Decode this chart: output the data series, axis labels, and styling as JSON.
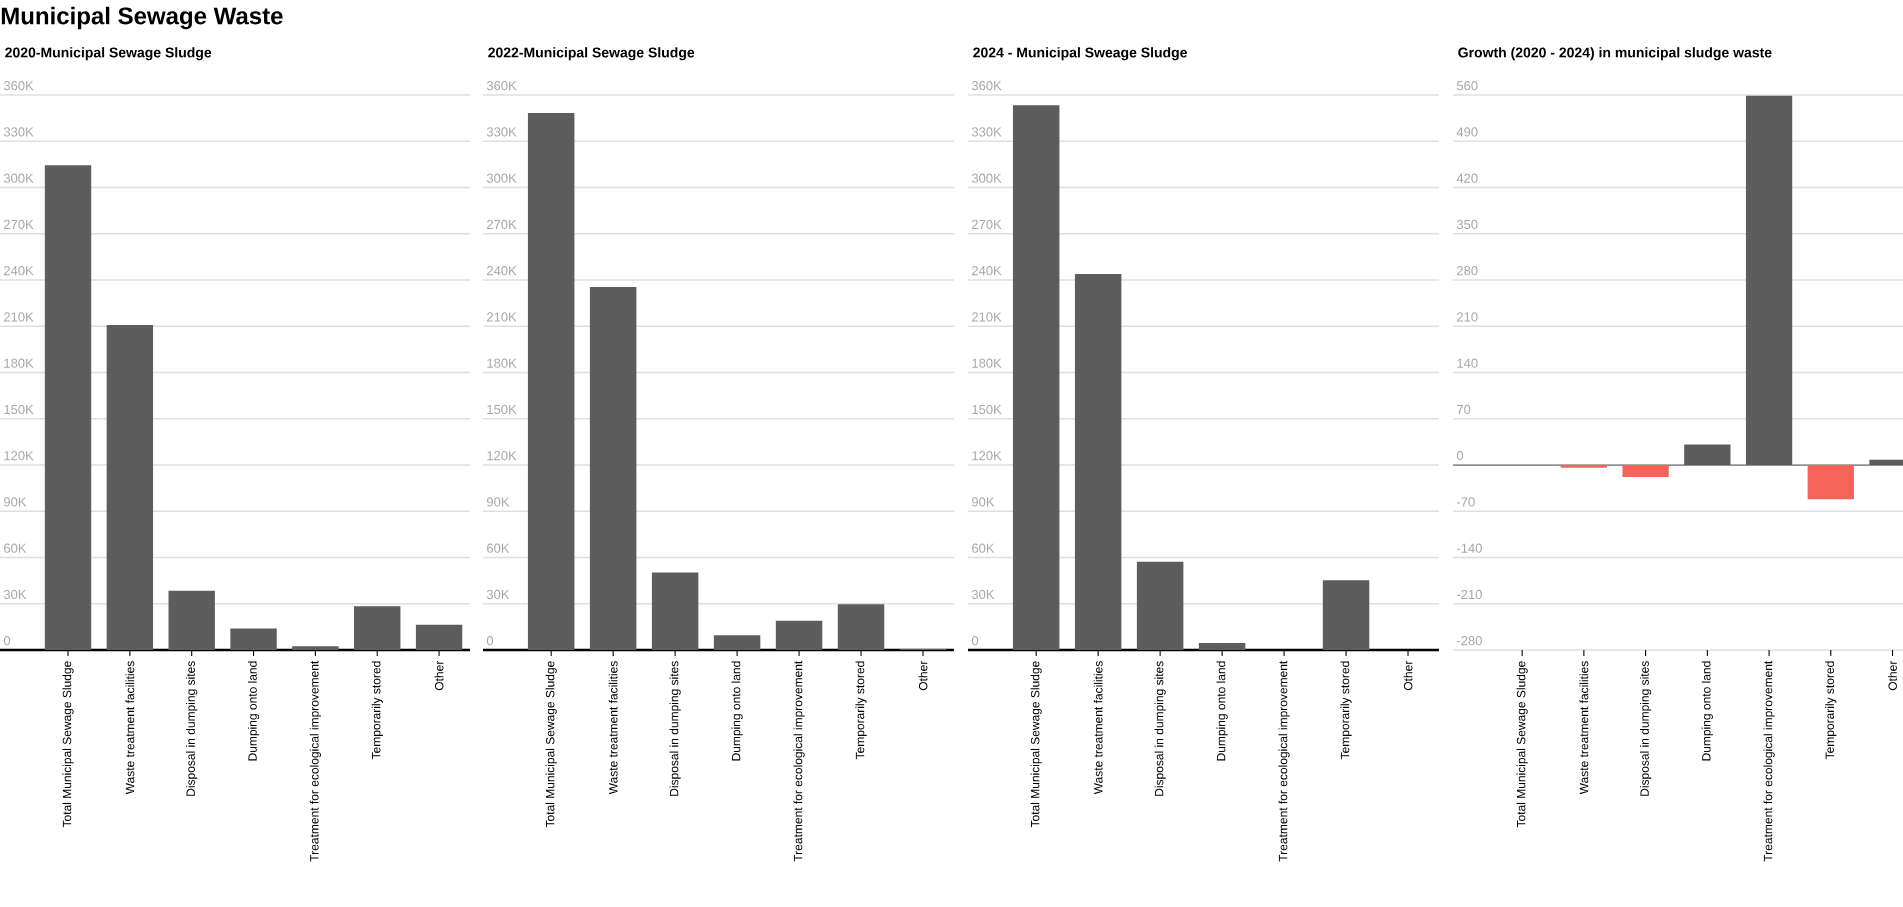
{
  "chart_data": [
    {
      "type": "bar",
      "title": "2020-Municipal Sewage Sludge",
      "annotations": [
        "Municipal Sewage Waste"
      ],
      "categories": [
        "Total Municipal Sewage Sludge",
        "Waste treatment facilities",
        "Disposal in dumping sites",
        "Dumping onto land",
        "Treatment for ecological improvement",
        "Temporarily stored",
        "Other"
      ],
      "values": [
        314500,
        210800,
        38400,
        14000,
        2500,
        28400,
        16400
      ],
      "color": "#5d5d5d",
      "ylim": [
        0,
        360000
      ],
      "yticks": [
        0,
        {
          "value": 30000,
          "label": "30K"
        },
        {
          "value": 60000,
          "label": "60K"
        },
        {
          "value": 90000,
          "label": "90K"
        },
        {
          "value": 120000,
          "label": "120K"
        },
        {
          "value": 150000,
          "label": "150K"
        },
        {
          "value": 180000,
          "label": "180K"
        },
        {
          "value": 210000,
          "label": "210K"
        },
        {
          "value": 240000,
          "label": "240K"
        },
        {
          "value": 270000,
          "label": "270K"
        },
        {
          "value": 300000,
          "label": "300K"
        },
        {
          "value": 330000,
          "label": "330K"
        },
        {
          "value": 360000,
          "label": "360K"
        }
      ],
      "grid": "y"
    },
    {
      "type": "bar",
      "title": "2022-Municipal Sewage Sludge",
      "categories": [
        "Total Municipal Sewage Sludge",
        "Waste treatment facilities",
        "Disposal in dumping sites",
        "Dumping onto land",
        "Treatment for ecological improvement",
        "Temporarily stored",
        "Other"
      ],
      "values": [
        348300,
        235500,
        50300,
        9500,
        18900,
        29700,
        700
      ],
      "color": "#5d5d5d",
      "ylim": [
        0,
        360000
      ],
      "yticks": [
        0,
        {
          "value": 30000,
          "label": "30K"
        },
        {
          "value": 60000,
          "label": "60K"
        },
        {
          "value": 90000,
          "label": "90K"
        },
        {
          "value": 120000,
          "label": "120K"
        },
        {
          "value": 150000,
          "label": "150K"
        },
        {
          "value": 180000,
          "label": "180K"
        },
        {
          "value": 210000,
          "label": "210K"
        },
        {
          "value": 240000,
          "label": "240K"
        },
        {
          "value": 270000,
          "label": "270K"
        },
        {
          "value": 300000,
          "label": "300K"
        },
        {
          "value": 330000,
          "label": "330K"
        },
        {
          "value": 360000,
          "label": "360K"
        }
      ],
      "grid": "y"
    },
    {
      "type": "bar",
      "title": "2024 - Municipal Sweage Sludge",
      "categories": [
        "Total Municipal Sewage Sludge",
        "Waste treatment facilities",
        "Disposal in dumping sites",
        "Dumping onto land",
        "Treatment for ecological improvement",
        "Temporarily stored",
        "Other"
      ],
      "values": [
        353300,
        243900,
        57300,
        4500,
        0,
        45300,
        0
      ],
      "color": "#5d5d5d",
      "ylim": [
        0,
        360000
      ],
      "yticks": [
        0,
        {
          "value": 30000,
          "label": "30K"
        },
        {
          "value": 60000,
          "label": "60K"
        },
        {
          "value": 90000,
          "label": "90K"
        },
        {
          "value": 120000,
          "label": "120K"
        },
        {
          "value": 150000,
          "label": "150K"
        },
        {
          "value": 180000,
          "label": "180K"
        },
        {
          "value": 210000,
          "label": "210K"
        },
        {
          "value": 240000,
          "label": "240K"
        },
        {
          "value": 270000,
          "label": "270K"
        },
        {
          "value": 300000,
          "label": "300K"
        },
        {
          "value": 330000,
          "label": "330K"
        },
        {
          "value": 360000,
          "label": "360K"
        }
      ],
      "grid": "y"
    },
    {
      "type": "bar",
      "title": "Growth (2020 - 2024) in municipal sludge waste",
      "categories": [
        "Total Municipal Sewage Sludge",
        "Waste treatment facilities",
        "Disposal in dumping sites",
        "Dumping onto land",
        "Treatment for ecological improvement",
        "Temporarily stored",
        "Other"
      ],
      "values": [
        0,
        -4,
        -18,
        31,
        559,
        -52,
        8
      ],
      "colors": [
        "#5d5d5d",
        "#f4645a",
        "#f4645a",
        "#5d5d5d",
        "#5d5d5d",
        "#f4645a",
        "#5d5d5d"
      ],
      "ylim": [
        -280,
        560
      ],
      "yticks": [
        -280,
        -210,
        -140,
        -70,
        0,
        70,
        140,
        210,
        280,
        350,
        420,
        490,
        560
      ],
      "grid": "y"
    }
  ]
}
